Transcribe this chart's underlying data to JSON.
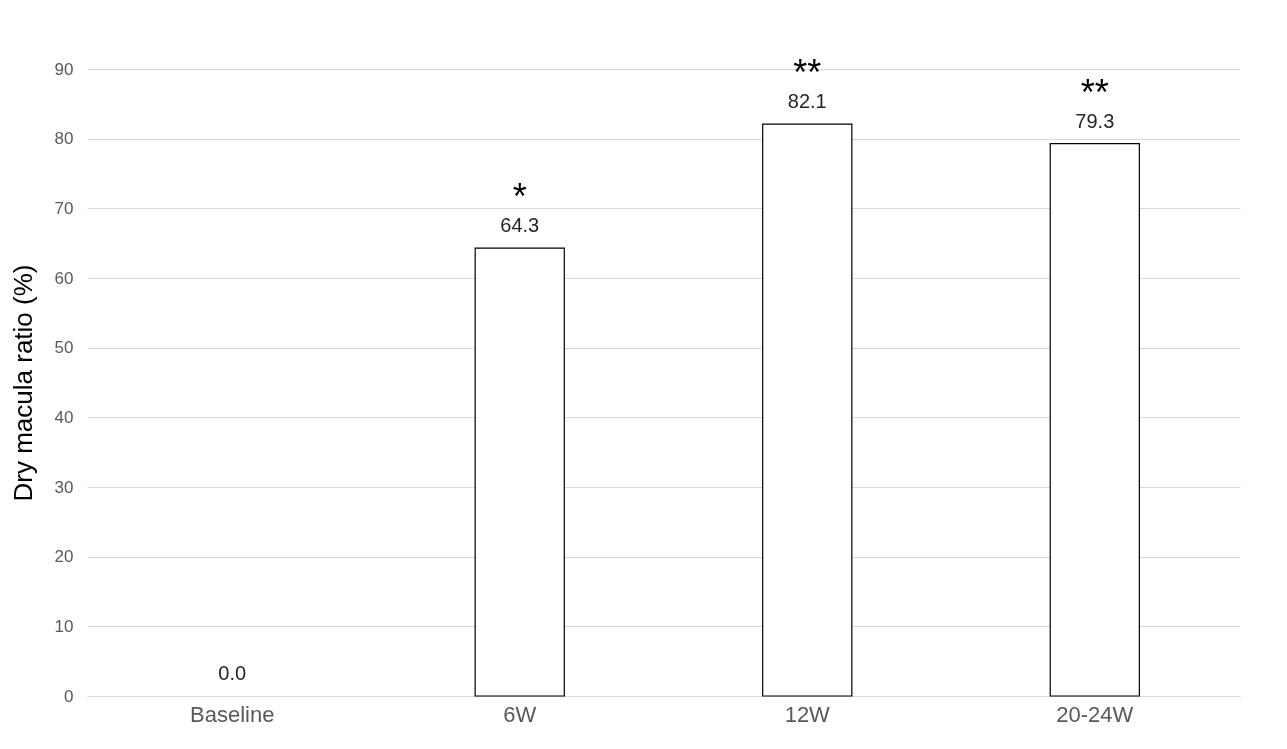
{
  "chart_data": {
    "type": "bar",
    "ylabel": "Dry macula ratio (%)",
    "categories": [
      "Baseline",
      "6W",
      "12W",
      "20-24W"
    ],
    "values": [
      0.0,
      64.3,
      82.1,
      79.3
    ],
    "value_labels": [
      "0.0",
      "64.3",
      "82.1",
      "79.3"
    ],
    "color": "#ffffff",
    "ylim": [
      0,
      90
    ],
    "yticks": [
      0,
      10,
      20,
      30,
      40,
      50,
      60,
      70,
      80,
      90
    ],
    "grid": "y",
    "annotations": [
      "*",
      "**",
      "**"
    ]
  }
}
